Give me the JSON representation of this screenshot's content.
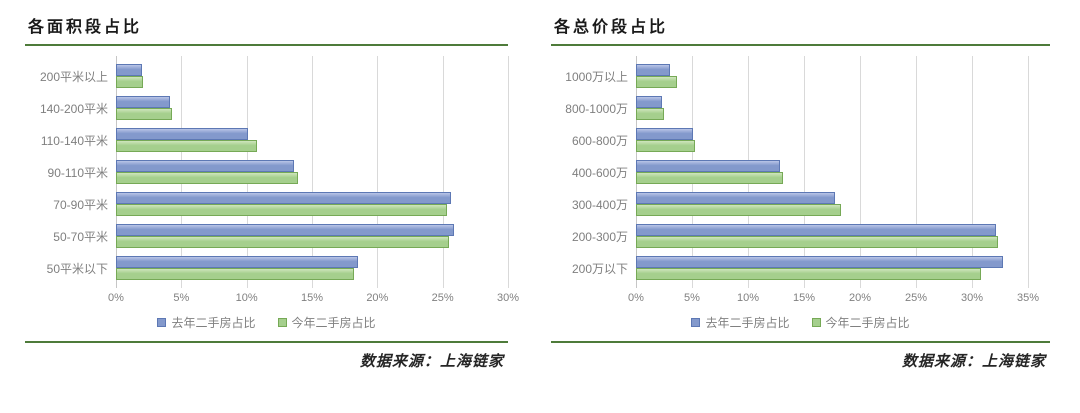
{
  "colors": {
    "rule_green": "#4e7b3a",
    "grid_line": "#d9d9d9",
    "axis_line": "#c6c6c6",
    "label_text": "#7f7f7f",
    "title_text": "#1a1a1a",
    "footer_text": "#262626",
    "background": "#ffffff"
  },
  "chart_data": [
    {
      "type": "bar",
      "orientation": "horizontal",
      "title": "各面积段占比",
      "footer": "数据来源：上海链家",
      "categories": [
        "200平米以上",
        "140-200平米",
        "110-140平米",
        "90-110平米",
        "70-90平米",
        "50-70平米",
        "50平米以下"
      ],
      "series": [
        {
          "name": "去年二手房占比",
          "fill": "#8399cc",
          "highlight": "#b9c5e7",
          "border": "#5d78b4",
          "values": [
            2.0,
            4.1,
            10.1,
            13.6,
            25.6,
            25.9,
            18.5
          ]
        },
        {
          "name": "今年二手房占比",
          "fill": "#a5cf8d",
          "highlight": "#cfe6bd",
          "border": "#76a956",
          "values": [
            2.1,
            4.3,
            10.8,
            13.9,
            25.3,
            25.5,
            18.2
          ]
        }
      ],
      "xticks": [
        "0%",
        "5%",
        "10%",
        "15%",
        "20%",
        "25%",
        "30%"
      ],
      "xlim": [
        0,
        30
      ],
      "grid": "vertical",
      "legend_position": "bottom"
    },
    {
      "type": "bar",
      "orientation": "horizontal",
      "title": "各总价段占比",
      "footer": "数据来源：上海链家",
      "categories": [
        "1000万以上",
        "800-1000万",
        "600-800万",
        "400-600万",
        "300-400万",
        "200-300万",
        "200万以下"
      ],
      "series": [
        {
          "name": "去年二手房占比",
          "fill": "#8399cc",
          "highlight": "#b9c5e7",
          "border": "#5d78b4",
          "values": [
            2.9,
            2.2,
            4.8,
            12.2,
            16.8,
            30.4,
            31.0
          ]
        },
        {
          "name": "今年二手房占比",
          "fill": "#a5cf8d",
          "highlight": "#cfe6bd",
          "border": "#76a956",
          "values": [
            3.5,
            2.4,
            5.0,
            12.4,
            17.3,
            30.6,
            29.2
          ]
        }
      ],
      "xticks": [
        "0%",
        "5%",
        "10%",
        "15%",
        "20%",
        "25%",
        "30%",
        "35%"
      ],
      "xlim": [
        0,
        35
      ],
      "grid": "vertical",
      "legend_position": "bottom"
    }
  ]
}
